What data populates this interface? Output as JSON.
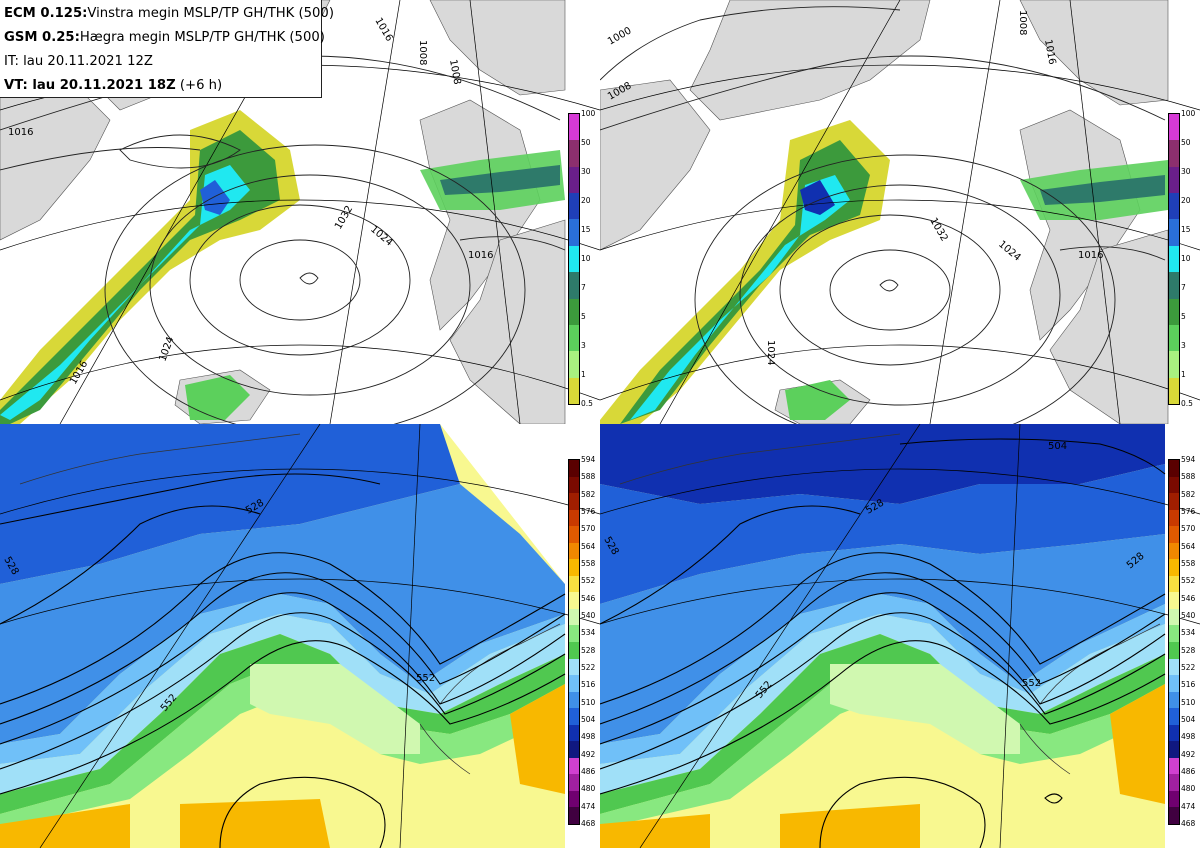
{
  "info": {
    "line1_bold": "ECM 0.125:",
    "line1_text": "Vinstra megin MSLP/TP GH/THK (500)",
    "line2_bold": "GSM 0.25:",
    "line2_text": "Hægra megin MSLP/TP GH/THK (500)",
    "line3": "IT: lau 20.11.2021 12Z",
    "line4_bold": "VT: lau 20.11.2021 18Z",
    "line4_text": " (+6 h)"
  },
  "precip_scale": {
    "labels": [
      "100",
      "50",
      "30",
      "20",
      "15",
      "10",
      "7",
      "5",
      "3",
      "1",
      "0.5"
    ],
    "colors": [
      "#d63ad6",
      "#8c2f6e",
      "#6a1f8a",
      "#1f3fb8",
      "#2a6fd8",
      "#20e8f0",
      "#2e7a6a",
      "#3c9a3c",
      "#5cd05c",
      "#a8f080",
      "#d8d838"
    ]
  },
  "thk_scale": {
    "labels": [
      "594",
      "588",
      "582",
      "576",
      "570",
      "564",
      "558",
      "552",
      "546",
      "540",
      "534",
      "528",
      "522",
      "516",
      "510",
      "504",
      "498",
      "492",
      "486",
      "480",
      "474",
      "468"
    ],
    "colors": [
      "#5a0000",
      "#7a0a00",
      "#a01e00",
      "#c83a00",
      "#e05a00",
      "#f08800",
      "#f8b800",
      "#f8e040",
      "#f8f890",
      "#d0f8b0",
      "#88e880",
      "#50c850",
      "#a0e0f8",
      "#70c0f8",
      "#4090e8",
      "#2060d8",
      "#1030b0",
      "#101880",
      "#d040d0",
      "#a020a0",
      "#700070",
      "#400040"
    ]
  },
  "panels": {
    "ecm_mslp": {
      "contour_labels": [
        "1016",
        "1008",
        "1016",
        "1024",
        "1032",
        "1016",
        "1024",
        "1008",
        "1016"
      ]
    },
    "gsm_mslp": {
      "contour_labels": [
        "1000",
        "1008",
        "1024",
        "1032",
        "1016",
        "1008",
        "1016",
        "1024"
      ]
    },
    "ecm_gh": {
      "contour_labels": [
        "528",
        "528",
        "552",
        "552"
      ]
    },
    "gsm_gh": {
      "contour_labels": [
        "504",
        "528",
        "528",
        "552",
        "552",
        "528"
      ]
    }
  }
}
